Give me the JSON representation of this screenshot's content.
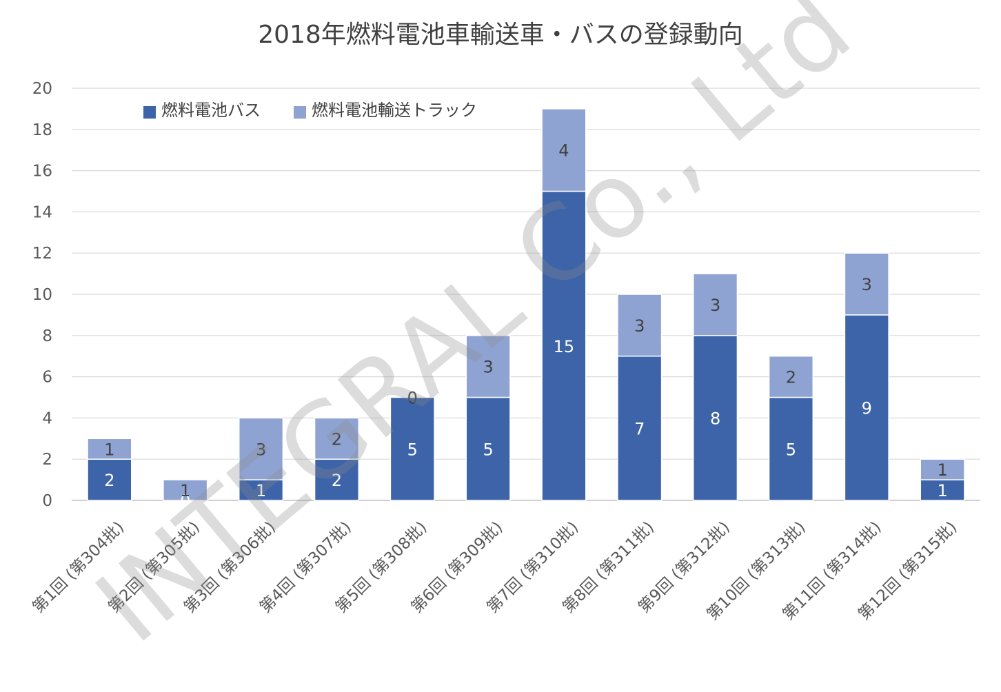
{
  "chart_data": {
    "type": "bar",
    "stacked": true,
    "title": "2018年燃料電池車輸送車・バスの登録動向",
    "xlabel": "",
    "ylabel": "",
    "ylim": [
      0,
      20
    ],
    "yticks": [
      "0",
      "2",
      "4",
      "6",
      "8",
      "10",
      "12",
      "14",
      "16",
      "18",
      "20"
    ],
    "grid": true,
    "legend_position": "top-left",
    "categories": [
      "第1回 (第304批)",
      "第2回 (第305批)",
      "第3回 (第306批)",
      "第4回 (第307批)",
      "第5回 (第308批)",
      "第6回 (第309批)",
      "第7回 (第310批)",
      "第8回 (第311批)",
      "第9回 (第312批)",
      "第10回 (第313批)",
      "第11回 (第314批)",
      "第12回 (第315批)"
    ],
    "series": [
      {
        "name": "燃料電池バス",
        "color": "#3d64a8",
        "label_color": "#ffffff",
        "values": [
          2,
          0,
          1,
          2,
          5,
          5,
          15,
          7,
          8,
          5,
          9,
          1
        ]
      },
      {
        "name": "燃料電池輸送トラック",
        "color": "#8fa3d2",
        "label_color": "#404040",
        "values": [
          1,
          1,
          3,
          2,
          0,
          3,
          4,
          3,
          3,
          2,
          3,
          1
        ]
      }
    ]
  },
  "watermark": {
    "text": "INTEGRAL Co., Ltd"
  }
}
